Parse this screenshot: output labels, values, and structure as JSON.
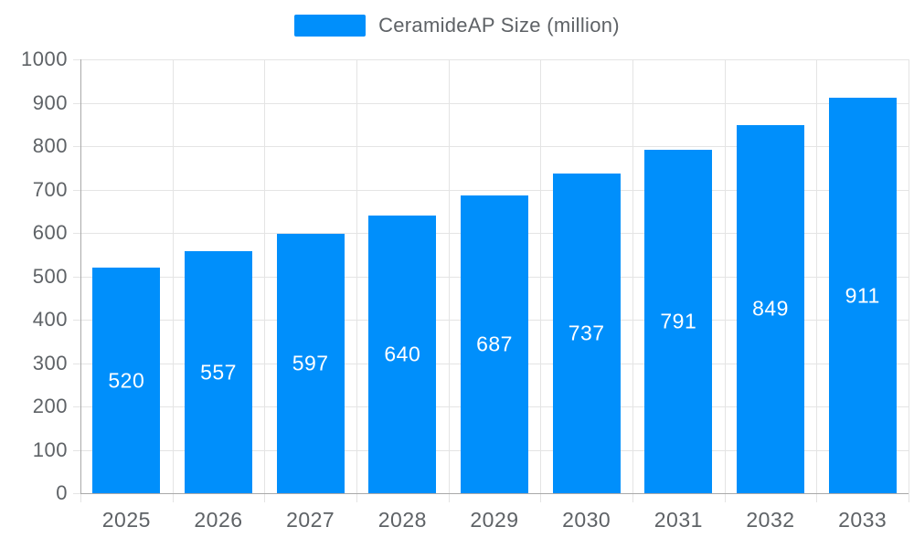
{
  "legend": {
    "label": "CeramideAP Size (million)"
  },
  "colors": {
    "bar": "#008FFB",
    "grid": "#e4e4e4",
    "axis_line": "#a9a9a9",
    "label_text": "#5e6266",
    "value_label_text": "#ffffff",
    "background": "#ffffff"
  },
  "chart_data": {
    "type": "bar",
    "title": "",
    "legend_entries": [
      "CeramideAP Size (million)"
    ],
    "legend_position": "top",
    "categories": [
      "2025",
      "2026",
      "2027",
      "2028",
      "2029",
      "2030",
      "2031",
      "2032",
      "2033"
    ],
    "series": [
      {
        "name": "CeramideAP Size (million)",
        "values": [
          520,
          557,
          597,
          640,
          687,
          737,
          791,
          849,
          911
        ]
      }
    ],
    "data_labels": [
      520,
      557,
      597,
      640,
      687,
      737,
      791,
      849,
      911
    ],
    "data_label_position": "inside-middle",
    "xlabel": "",
    "ylabel": "",
    "ylim": [
      0,
      1000
    ],
    "ytick_step": 100,
    "yticks": [
      0,
      100,
      200,
      300,
      400,
      500,
      600,
      700,
      800,
      900,
      1000
    ],
    "grid": "on"
  }
}
